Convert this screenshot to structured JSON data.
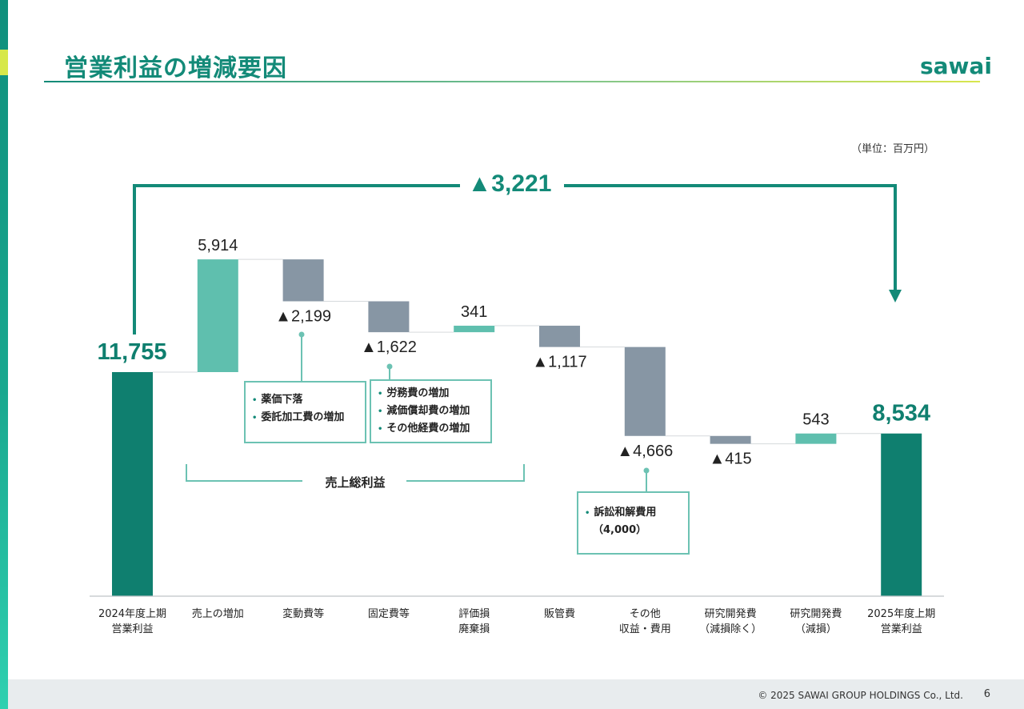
{
  "header": {
    "title": "営業利益の増減要因",
    "logo": "sawai"
  },
  "unit_label": "（単位：百万円）",
  "bracket_label": "売上総利益",
  "callouts": {
    "variable_cost": {
      "items": [
        "薬価下落",
        "委託加工費の増加"
      ]
    },
    "fixed_cost": {
      "items": [
        "労務費の増加",
        "減価償却費の増加",
        "その他経費の増加"
      ]
    },
    "other": {
      "items": [
        "訴訟和解費用"
      ],
      "sub": "（4,000）"
    }
  },
  "footer": {
    "copyright": "© 2025 SAWAI GROUP HOLDINGS Co., Ltd.",
    "page_number": "6"
  },
  "colors": {
    "total": "#0f7f6f",
    "increase": "#5fbfae",
    "decrease": "#8796a4",
    "accent": "#138a78"
  },
  "chart_data": {
    "type": "waterfall",
    "title": "営業利益の増減要因",
    "unit": "百万円",
    "start": 11755,
    "end": 8534,
    "total_change": -3221,
    "total_change_label": "▲3,221",
    "categories": [
      {
        "label": [
          "2024年度上期",
          "営業利益"
        ],
        "kind": "total",
        "value": 11755,
        "display": "11,755"
      },
      {
        "label": [
          "売上の増加"
        ],
        "kind": "increase",
        "value": 5914,
        "display": "5,914"
      },
      {
        "label": [
          "変動費等"
        ],
        "kind": "decrease",
        "value": -2199,
        "display": "▲2,199"
      },
      {
        "label": [
          "固定費等"
        ],
        "kind": "decrease",
        "value": -1622,
        "display": "▲1,622"
      },
      {
        "label": [
          "評価損",
          "廃棄損"
        ],
        "kind": "increase",
        "value": 341,
        "display": "341"
      },
      {
        "label": [
          "販管費"
        ],
        "kind": "decrease",
        "value": -1117,
        "display": "▲1,117"
      },
      {
        "label": [
          "その他",
          "収益・費用"
        ],
        "kind": "decrease",
        "value": -4666,
        "display": "▲4,666"
      },
      {
        "label": [
          "研究開発費",
          "（減損除く）"
        ],
        "kind": "decrease",
        "value": -415,
        "display": "▲415"
      },
      {
        "label": [
          "研究開発費",
          "（減損）"
        ],
        "kind": "increase",
        "value": 543,
        "display": "543"
      },
      {
        "label": [
          "2025年度上期",
          "営業利益"
        ],
        "kind": "total",
        "value": 8534,
        "display": "8,534"
      }
    ]
  }
}
